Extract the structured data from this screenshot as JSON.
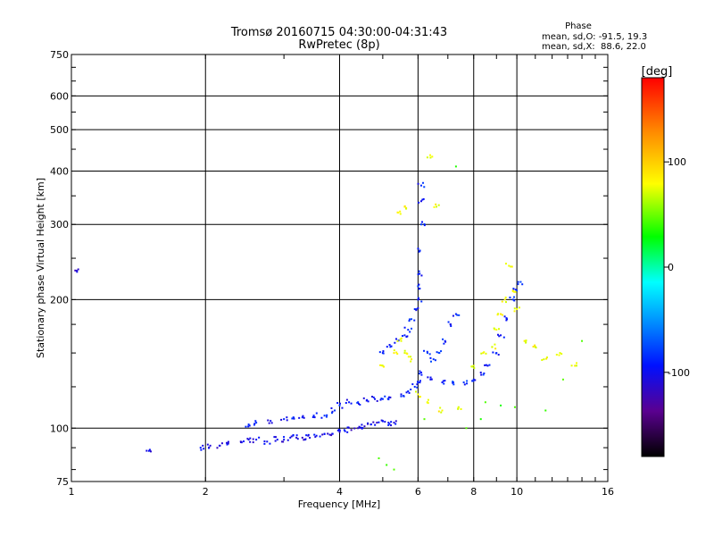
{
  "chart_data": {
    "type": "scatter",
    "title": "Tromsø 20160715 04:30:00-04:31:43",
    "subtitle": "RwPretec (8p)",
    "xlabel": "Frequency [MHz]",
    "ylabel": "Stationary phase Virtual Height [km]",
    "x_scale": "log",
    "y_scale": "log",
    "xlim": [
      1,
      16
    ],
    "ylim": [
      75,
      750
    ],
    "x_ticks": [
      1,
      2,
      4,
      6,
      8,
      10,
      16
    ],
    "y_ticks": [
      75,
      100,
      200,
      300,
      400,
      500,
      600,
      750
    ],
    "grid": true,
    "phase_box": {
      "heading": "Phase",
      "line1": "mean, sd,O: -91.5, 19.3",
      "line2": "mean, sd,X:  88.6, 22.0"
    },
    "colorbar": {
      "label": "[deg]",
      "ticks": [
        100,
        0,
        -100
      ],
      "range": [
        -180,
        180
      ]
    },
    "series": [
      {
        "trace": "lower-E-trace",
        "phase_deg": -110,
        "points": [
          [
            1.02,
            234
          ],
          [
            1.5,
            89
          ],
          [
            1.95,
            90
          ],
          [
            2.05,
            91
          ],
          [
            2.15,
            91
          ],
          [
            2.25,
            92
          ],
          [
            2.4,
            93
          ],
          [
            2.5,
            94
          ],
          [
            2.6,
            94
          ],
          [
            2.75,
            93
          ],
          [
            2.9,
            94
          ],
          [
            3.0,
            94
          ],
          [
            3.1,
            95
          ],
          [
            3.2,
            95
          ],
          [
            3.3,
            95
          ],
          [
            3.4,
            96
          ],
          [
            3.55,
            96
          ],
          [
            3.7,
            97
          ],
          [
            3.85,
            97
          ],
          [
            4.0,
            98
          ],
          [
            4.1,
            99
          ],
          [
            4.25,
            99
          ],
          [
            4.4,
            100
          ],
          [
            4.55,
            101
          ],
          [
            4.7,
            102
          ],
          [
            4.85,
            103
          ],
          [
            5.0,
            104
          ],
          [
            5.15,
            103
          ],
          [
            5.3,
            103
          ]
        ]
      },
      {
        "trace": "upper-E-trace",
        "phase_deg": -100,
        "points": [
          [
            2.5,
            102
          ],
          [
            2.6,
            103
          ],
          [
            2.8,
            104
          ],
          [
            3.0,
            105
          ],
          [
            3.15,
            106
          ],
          [
            3.3,
            106
          ],
          [
            3.5,
            107
          ],
          [
            3.7,
            107
          ],
          [
            3.9,
            110
          ],
          [
            4.0,
            113
          ],
          [
            4.2,
            115
          ],
          [
            4.4,
            115
          ],
          [
            4.6,
            116
          ],
          [
            4.8,
            117
          ],
          [
            5.0,
            117
          ],
          [
            5.2,
            118
          ],
          [
            5.5,
            120
          ],
          [
            5.7,
            122
          ],
          [
            5.9,
            125
          ],
          [
            6.0,
            128
          ],
          [
            6.1,
            135
          ]
        ]
      },
      {
        "trace": "F-trace-O",
        "phase_deg": -95,
        "points": [
          [
            5.0,
            150
          ],
          [
            5.2,
            155
          ],
          [
            5.4,
            160
          ],
          [
            5.6,
            165
          ],
          [
            5.7,
            170
          ],
          [
            5.8,
            180
          ],
          [
            5.9,
            190
          ],
          [
            6.0,
            200
          ],
          [
            6.0,
            215
          ],
          [
            6.05,
            230
          ],
          [
            6.05,
            260
          ],
          [
            6.1,
            300
          ],
          [
            6.1,
            340
          ],
          [
            6.1,
            370
          ],
          [
            6.3,
            150
          ],
          [
            6.5,
            145
          ],
          [
            6.7,
            150
          ],
          [
            6.9,
            160
          ],
          [
            7.1,
            175
          ],
          [
            7.3,
            185
          ],
          [
            6.4,
            130
          ],
          [
            6.8,
            128
          ],
          [
            7.2,
            128
          ],
          [
            7.6,
            128
          ],
          [
            8.0,
            130
          ],
          [
            8.3,
            135
          ],
          [
            8.6,
            140
          ],
          [
            9.0,
            150
          ],
          [
            9.2,
            165
          ],
          [
            9.5,
            180
          ],
          [
            9.8,
            200
          ],
          [
            10.0,
            210
          ],
          [
            10.2,
            220
          ]
        ]
      },
      {
        "trace": "F-trace-X",
        "phase_deg": 95,
        "points": [
          [
            5.0,
            140
          ],
          [
            5.3,
            150
          ],
          [
            5.5,
            160
          ],
          [
            5.6,
            150
          ],
          [
            5.8,
            145
          ],
          [
            6.0,
            120
          ],
          [
            6.3,
            115
          ],
          [
            6.8,
            110
          ],
          [
            7.4,
            112
          ],
          [
            8.0,
            140
          ],
          [
            8.4,
            150
          ],
          [
            8.8,
            155
          ],
          [
            9.0,
            170
          ],
          [
            9.2,
            185
          ],
          [
            9.4,
            200
          ],
          [
            9.6,
            240
          ],
          [
            9.8,
            210
          ],
          [
            10.0,
            190
          ],
          [
            10.4,
            160
          ],
          [
            11.0,
            155
          ],
          [
            11.5,
            145
          ],
          [
            12.5,
            150
          ],
          [
            13.5,
            140
          ],
          [
            5.4,
            320
          ],
          [
            5.6,
            330
          ],
          [
            6.4,
            430
          ],
          [
            6.6,
            330
          ]
        ]
      },
      {
        "trace": "scattered-noise",
        "phase_deg": 20,
        "points": [
          [
            4.9,
            85
          ],
          [
            5.1,
            82
          ],
          [
            5.3,
            80
          ],
          [
            7.7,
            100
          ],
          [
            8.5,
            115
          ],
          [
            9.2,
            113
          ],
          [
            9.9,
            112
          ],
          [
            11.6,
            110
          ],
          [
            12.7,
            130
          ],
          [
            7.3,
            410
          ],
          [
            14.0,
            160
          ],
          [
            8.3,
            105
          ],
          [
            6.2,
            105
          ]
        ]
      }
    ]
  }
}
